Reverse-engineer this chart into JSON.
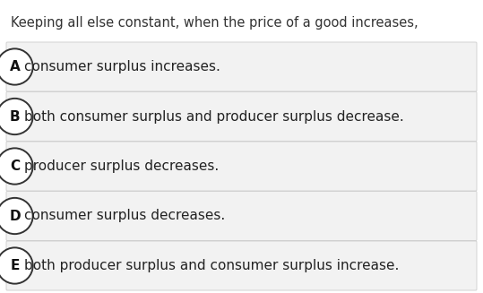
{
  "question": "Keeping all else constant, when the price of a good increases,",
  "options": [
    {
      "label": "A",
      "text": "consumer surplus increases."
    },
    {
      "label": "B",
      "text": "both consumer surplus and producer surplus decrease."
    },
    {
      "label": "C",
      "text": "producer surplus decreases."
    },
    {
      "label": "D",
      "text": "consumer surplus decreases."
    },
    {
      "label": "E",
      "text": "both producer surplus and consumer surplus increase."
    }
  ],
  "bg_color": "#ffffff",
  "option_bg_color": "#f2f2f2",
  "option_border_color": "#cccccc",
  "question_color": "#333333",
  "option_text_color": "#222222",
  "label_color": "#111111",
  "circle_edge_color": "#333333",
  "question_fontsize": 10.5,
  "option_fontsize": 11.0,
  "label_fontsize": 11.0,
  "fig_width": 5.39,
  "fig_height": 3.27,
  "dpi": 100
}
